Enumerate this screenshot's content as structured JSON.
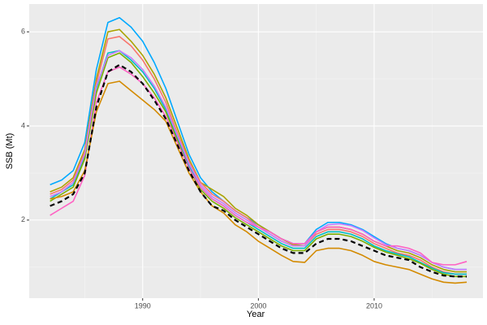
{
  "chart_data": {
    "type": "line",
    "x_label": "Year",
    "y_label": "SSB (Mt)",
    "x": [
      1982,
      1983,
      1984,
      1985,
      1986,
      1987,
      1988,
      1989,
      1990,
      1991,
      1992,
      1993,
      1994,
      1995,
      1996,
      1997,
      1998,
      1999,
      2000,
      2001,
      2002,
      2003,
      2004,
      2005,
      2006,
      2007,
      2008,
      2009,
      2010,
      2011,
      2012,
      2013,
      2014,
      2015,
      2016,
      2017,
      2018
    ],
    "xlim": [
      1980.2,
      2019.4
    ],
    "xticks": [
      1990,
      2000,
      2010
    ],
    "ylim": [
      0.34,
      6.59
    ],
    "yticks": [
      2,
      4,
      6
    ],
    "grid": true,
    "series": [
      {
        "color": "#00A9FF",
        "values": [
          2.75,
          2.85,
          3.05,
          3.65,
          5.2,
          6.2,
          6.3,
          6.1,
          5.8,
          5.35,
          4.8,
          4.1,
          3.4,
          2.9,
          2.6,
          2.4,
          2.2,
          2.05,
          1.9,
          1.75,
          1.6,
          1.5,
          1.5,
          1.8,
          1.95,
          1.95,
          1.9,
          1.8,
          1.65,
          1.5,
          1.4,
          1.35,
          1.25,
          1.1,
          1.0,
          0.95,
          0.95
        ]
      },
      {
        "color": "#ABA300",
        "values": [
          2.6,
          2.7,
          2.9,
          3.5,
          5.0,
          6.0,
          6.05,
          5.8,
          5.5,
          5.1,
          4.6,
          3.95,
          3.3,
          2.8,
          2.65,
          2.5,
          2.25,
          2.1,
          1.9,
          1.75,
          1.6,
          1.48,
          1.45,
          1.75,
          1.85,
          1.85,
          1.8,
          1.7,
          1.55,
          1.45,
          1.35,
          1.3,
          1.2,
          1.05,
          0.95,
          0.9,
          0.9
        ]
      },
      {
        "color": "#F8766D",
        "values": [
          2.55,
          2.65,
          2.85,
          3.45,
          4.9,
          5.85,
          5.9,
          5.7,
          5.4,
          5.0,
          4.5,
          3.85,
          3.25,
          2.8,
          2.55,
          2.4,
          2.2,
          2.05,
          1.85,
          1.7,
          1.55,
          1.45,
          1.45,
          1.7,
          1.8,
          1.8,
          1.75,
          1.65,
          1.5,
          1.4,
          1.3,
          1.25,
          1.15,
          1.0,
          0.9,
          0.85,
          0.85
        ]
      },
      {
        "color": "#00BFC4",
        "values": [
          2.45,
          2.6,
          2.75,
          3.35,
          4.8,
          5.55,
          5.6,
          5.4,
          5.15,
          4.8,
          4.35,
          3.75,
          3.15,
          2.7,
          2.45,
          2.3,
          2.1,
          1.95,
          1.8,
          1.65,
          1.5,
          1.4,
          1.4,
          1.65,
          1.75,
          1.75,
          1.7,
          1.6,
          1.45,
          1.35,
          1.28,
          1.22,
          1.1,
          0.98,
          0.88,
          0.85,
          0.85
        ]
      },
      {
        "color": "#7CAE00",
        "values": [
          2.4,
          2.55,
          2.7,
          3.3,
          4.7,
          5.45,
          5.55,
          5.35,
          5.05,
          4.7,
          4.3,
          3.7,
          3.1,
          2.65,
          2.4,
          2.25,
          2.05,
          1.9,
          1.75,
          1.6,
          1.45,
          1.35,
          1.35,
          1.6,
          1.7,
          1.7,
          1.65,
          1.55,
          1.42,
          1.32,
          1.25,
          1.18,
          1.08,
          0.95,
          0.85,
          0.8,
          0.8
        ]
      },
      {
        "color": "#C77CFF",
        "values": [
          2.5,
          2.6,
          2.8,
          3.4,
          4.85,
          5.5,
          5.6,
          5.45,
          5.2,
          4.85,
          4.4,
          3.8,
          3.2,
          2.75,
          2.5,
          2.35,
          2.15,
          2.0,
          1.85,
          1.7,
          1.55,
          1.45,
          1.45,
          1.75,
          1.9,
          1.92,
          1.88,
          1.78,
          1.62,
          1.48,
          1.4,
          1.35,
          1.25,
          1.1,
          1.0,
          0.95,
          0.95
        ]
      },
      {
        "color": "#FF61C3",
        "values": [
          2.1,
          2.25,
          2.4,
          2.95,
          4.5,
          5.15,
          5.25,
          5.1,
          4.9,
          4.6,
          4.2,
          3.65,
          3.1,
          2.7,
          2.45,
          2.3,
          2.1,
          1.95,
          1.85,
          1.75,
          1.6,
          1.5,
          1.5,
          1.75,
          1.85,
          1.85,
          1.8,
          1.7,
          1.55,
          1.45,
          1.45,
          1.4,
          1.3,
          1.1,
          1.05,
          1.05,
          1.12
        ]
      },
      {
        "color": "#D38A00",
        "values": [
          2.45,
          2.5,
          2.6,
          3.05,
          4.3,
          4.9,
          4.95,
          4.75,
          4.55,
          4.35,
          4.1,
          3.55,
          3.0,
          2.6,
          2.3,
          2.15,
          1.9,
          1.75,
          1.55,
          1.4,
          1.25,
          1.12,
          1.1,
          1.35,
          1.4,
          1.4,
          1.35,
          1.25,
          1.12,
          1.05,
          1.0,
          0.95,
          0.85,
          0.75,
          0.68,
          0.66,
          0.68
        ]
      },
      {
        "color": "#000000",
        "linetype": "dashed",
        "values": [
          2.3,
          2.4,
          2.55,
          3.0,
          4.4,
          5.15,
          5.3,
          5.15,
          4.9,
          4.55,
          4.15,
          3.6,
          3.05,
          2.6,
          2.3,
          2.2,
          2.0,
          1.85,
          1.7,
          1.55,
          1.4,
          1.3,
          1.3,
          1.5,
          1.6,
          1.6,
          1.55,
          1.45,
          1.35,
          1.25,
          1.2,
          1.15,
          1.0,
          0.9,
          0.82,
          0.8,
          0.8
        ]
      }
    ]
  }
}
